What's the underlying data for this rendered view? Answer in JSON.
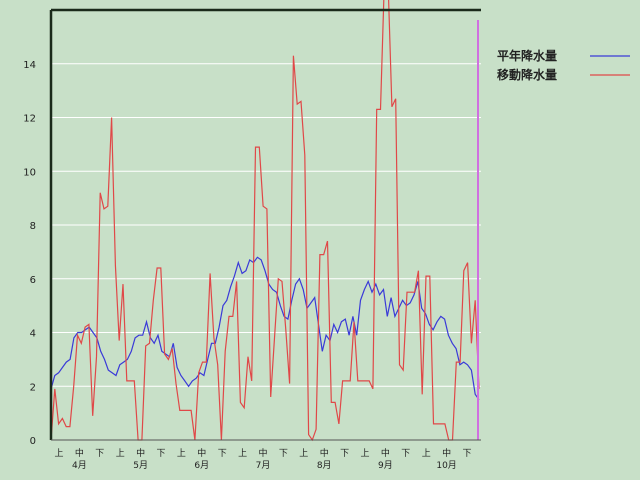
{
  "chart_data": {
    "type": "line",
    "title": "",
    "xlabel": "",
    "ylabel": "",
    "ylim": [
      0,
      16
    ],
    "yticks": [
      0,
      2,
      4,
      6,
      8,
      10,
      12,
      14
    ],
    "grid": true,
    "legend_position": "top-right",
    "x_sub_labels": [
      "上",
      "中",
      "下",
      "上",
      "中",
      "下",
      "上",
      "中",
      "下",
      "上",
      "中",
      "下",
      "上",
      "中",
      "下",
      "上",
      "中",
      "下",
      "上",
      "中",
      "下"
    ],
    "month_labels": [
      "4月",
      "5月",
      "6月",
      "7月",
      "8月",
      "9月",
      "10月"
    ],
    "series": [
      {
        "name": "平年降水量",
        "color": "#3a3ad8",
        "values": [
          1.9,
          2.4,
          2.5,
          2.7,
          2.9,
          3.0,
          3.8,
          4.0,
          4.0,
          4.1,
          4.2,
          4.0,
          3.8,
          3.3,
          3.0,
          2.6,
          2.5,
          2.4,
          2.8,
          2.9,
          3.0,
          3.3,
          3.8,
          3.9,
          3.9,
          4.4,
          3.8,
          3.6,
          3.9,
          3.3,
          3.2,
          3.1,
          3.6,
          2.7,
          2.4,
          2.2,
          2.0,
          2.2,
          2.3,
          2.5,
          2.4,
          3.0,
          3.6,
          3.6,
          4.2,
          5.0,
          5.2,
          5.7,
          6.1,
          6.6,
          6.2,
          6.3,
          6.7,
          6.6,
          6.8,
          6.7,
          6.3,
          5.8,
          5.6,
          5.5,
          5.0,
          4.6,
          4.5,
          5.2,
          5.8,
          6.0,
          5.6,
          4.9,
          5.1,
          5.3,
          4.3,
          3.3,
          3.9,
          3.7,
          4.3,
          4.0,
          4.4,
          4.5,
          3.9,
          4.6,
          3.9,
          5.2,
          5.6,
          5.9,
          5.5,
          5.8,
          5.4,
          5.6,
          4.6,
          5.3,
          4.6,
          4.9,
          5.2,
          5.0,
          5.1,
          5.4,
          5.9,
          4.9,
          4.7,
          4.3,
          4.1,
          4.4,
          4.6,
          4.5,
          3.9,
          3.6,
          3.4,
          2.8,
          2.9,
          2.8,
          2.6,
          1.7,
          1.5
        ],
        "dates_note": ""
      },
      {
        "name": "移動降水量",
        "color": "#e04848",
        "values": [
          0.0,
          1.9,
          0.6,
          0.8,
          0.5,
          0.5,
          2.0,
          3.9,
          3.6,
          4.2,
          4.3,
          0.9,
          3.1,
          9.2,
          8.6,
          8.7,
          12.0,
          6.5,
          3.7,
          5.8,
          2.2,
          2.2,
          2.2,
          0.0,
          0.0,
          3.5,
          3.6,
          5.2,
          6.4,
          6.4,
          3.2,
          3.0,
          3.4,
          2.1,
          1.1,
          1.1,
          1.1,
          1.1,
          0.0,
          2.5,
          2.9,
          2.9,
          6.2,
          3.8,
          2.8,
          0.0,
          3.3,
          4.6,
          4.6,
          5.9,
          1.4,
          1.2,
          3.1,
          2.2,
          10.9,
          10.9,
          8.7,
          8.6,
          1.6,
          3.8,
          6.0,
          5.9,
          4.1,
          2.1,
          14.3,
          12.5,
          12.6,
          10.6,
          0.2,
          0.0,
          0.4,
          6.9,
          6.9,
          7.4,
          1.4,
          1.4,
          0.6,
          2.2,
          2.2,
          2.2,
          4.4,
          2.2,
          2.2,
          2.2,
          2.2,
          1.9,
          12.3,
          12.3,
          17.0,
          17.0,
          12.4,
          12.7,
          2.8,
          2.6,
          5.5,
          5.5,
          5.5,
          6.3,
          1.7,
          6.1,
          6.1,
          0.6,
          0.6,
          0.6,
          0.6,
          0.0,
          0.0,
          2.9,
          2.9,
          6.3,
          6.6,
          3.6,
          5.2,
          1.9
        ]
      }
    ]
  }
}
